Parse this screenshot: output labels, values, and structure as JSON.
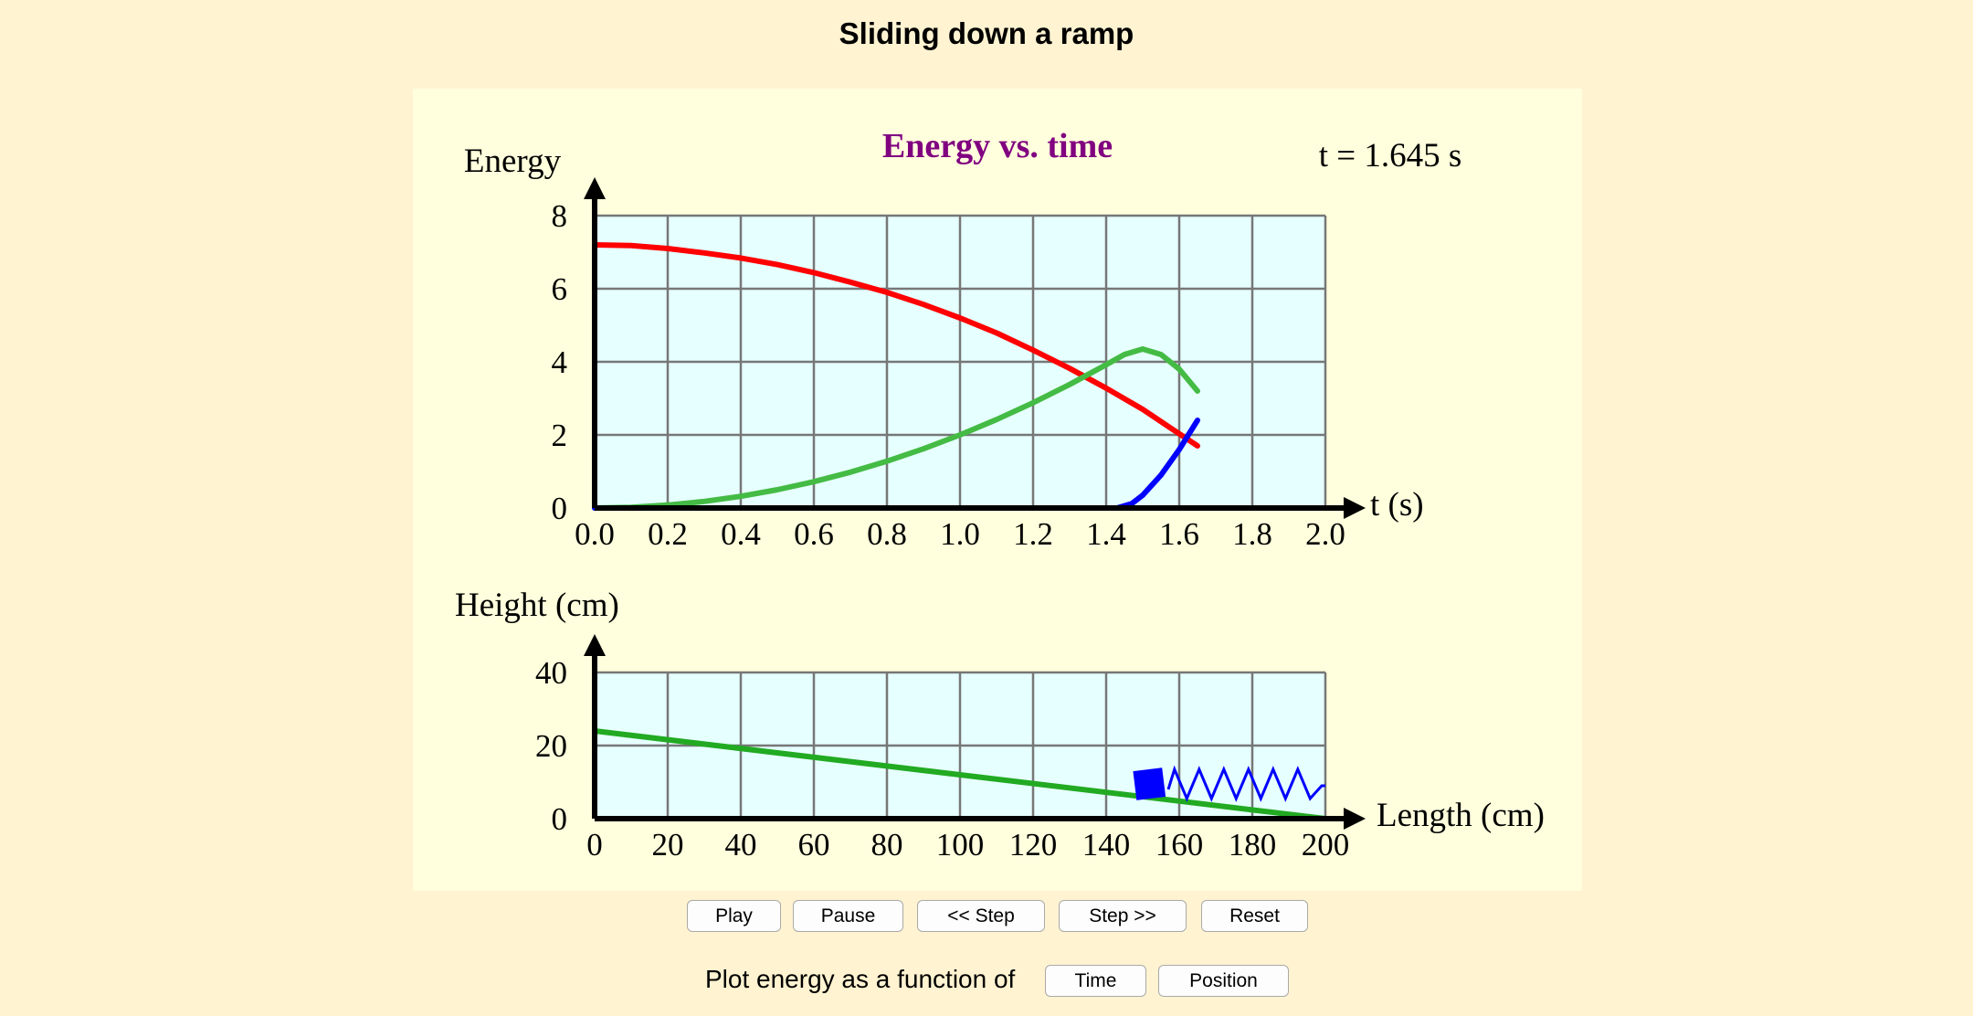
{
  "page": {
    "title": "Sliding down a ramp"
  },
  "colors": {
    "page_bg": "#fff3d1",
    "panel_bg": "#ffffdd",
    "plot_bg": "#e6ffff",
    "grid": "#777777",
    "title_purple": "#800080",
    "potential": "#ff0000",
    "kinetic": "#44bb44",
    "spring": "#0000ff",
    "ramp": "#22aa22"
  },
  "energy_plot": {
    "title": "Energy vs. time",
    "time_readout": "t = 1.645 s",
    "y_axis_label": "Energy",
    "x_axis_label": "t (s)",
    "x_ticks": [
      "0.0",
      "0.2",
      "0.4",
      "0.6",
      "0.8",
      "1.0",
      "1.2",
      "1.4",
      "1.6",
      "1.8",
      "2.0"
    ],
    "y_ticks": [
      "0",
      "2",
      "4",
      "6",
      "8"
    ]
  },
  "height_plot": {
    "y_axis_label": "Height (cm)",
    "x_axis_label": "Length (cm)",
    "x_ticks": [
      "0",
      "20",
      "40",
      "60",
      "80",
      "100",
      "120",
      "140",
      "160",
      "180",
      "200"
    ],
    "y_ticks": [
      "0",
      "20",
      "40"
    ]
  },
  "controls": {
    "play_label": "Play",
    "pause_label": "Pause",
    "step_back_label": "<< Step",
    "step_fwd_label": "Step >>",
    "reset_label": "Reset",
    "plot_as_label": "Plot energy as a function of",
    "time_label": "Time",
    "position_label": "Position"
  },
  "chart_data": [
    {
      "type": "line",
      "title": "Energy vs. time",
      "xlabel": "t (s)",
      "ylabel": "Energy",
      "xlim": [
        0,
        2.0
      ],
      "ylim": [
        0,
        8
      ],
      "grid": true,
      "series": [
        {
          "color": "#ff0000",
          "x": [
            0.0,
            0.1,
            0.2,
            0.3,
            0.4,
            0.5,
            0.6,
            0.7,
            0.8,
            0.9,
            1.0,
            1.1,
            1.2,
            1.3,
            1.4,
            1.5,
            1.6,
            1.65
          ],
          "y": [
            7.2,
            7.18,
            7.1,
            6.98,
            6.84,
            6.66,
            6.44,
            6.18,
            5.9,
            5.57,
            5.2,
            4.79,
            4.32,
            3.82,
            3.28,
            2.7,
            2.03,
            1.7
          ]
        },
        {
          "color": "#44bb44",
          "x": [
            0.0,
            0.1,
            0.2,
            0.3,
            0.4,
            0.5,
            0.6,
            0.7,
            0.8,
            0.9,
            1.0,
            1.1,
            1.2,
            1.3,
            1.4,
            1.45,
            1.5,
            1.55,
            1.6,
            1.65
          ],
          "y": [
            0.0,
            0.02,
            0.08,
            0.18,
            0.32,
            0.5,
            0.72,
            0.98,
            1.28,
            1.62,
            2.0,
            2.42,
            2.88,
            3.38,
            3.92,
            4.2,
            4.35,
            4.2,
            3.8,
            3.2
          ]
        },
        {
          "color": "#0000ff",
          "x": [
            0.0,
            0.5,
            1.0,
            1.43,
            1.47,
            1.5,
            1.55,
            1.6,
            1.65
          ],
          "y": [
            0.0,
            0.0,
            0.0,
            0.0,
            0.12,
            0.35,
            0.9,
            1.6,
            2.4
          ]
        }
      ]
    },
    {
      "type": "line",
      "xlabel": "Length (cm)",
      "ylabel": "Height (cm)",
      "xlim": [
        0,
        200
      ],
      "ylim": [
        0,
        40
      ],
      "grid": true,
      "series": [
        {
          "color": "#22aa22",
          "x": [
            0,
            200
          ],
          "y": [
            24,
            0
          ]
        }
      ],
      "block_position": {
        "x": 152,
        "y": 8
      },
      "spring": {
        "x_start": 157,
        "x_end": 200,
        "y": 8
      }
    }
  ]
}
